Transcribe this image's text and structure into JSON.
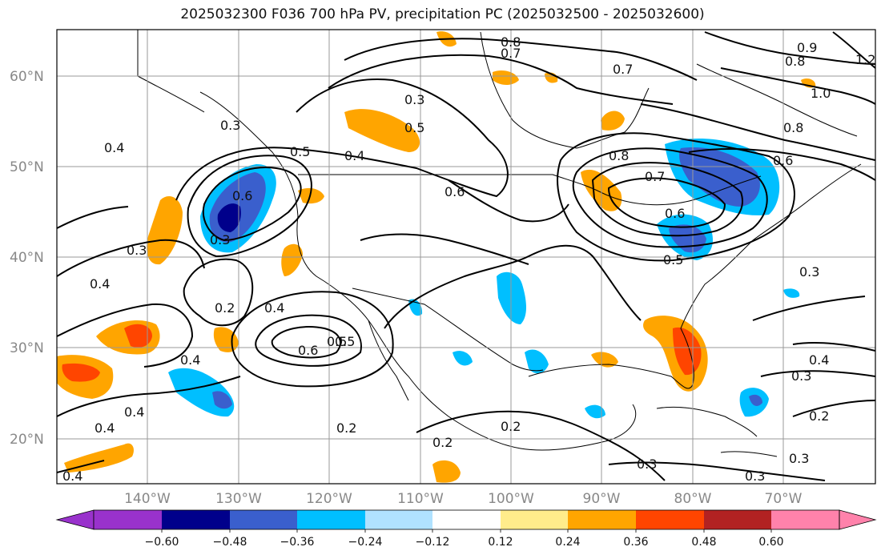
{
  "title": "2025032300 F036 700 hPa PV, precipitation PC (2025032500 - 2025032600)",
  "map": {
    "lat_labels": [
      "60°N",
      "50°N",
      "40°N",
      "30°N",
      "20°N"
    ],
    "lon_labels": [
      "140°W",
      "130°W",
      "120°W",
      "110°W",
      "100°W",
      "90°W",
      "80°W",
      "70°W"
    ],
    "contour_labels": [
      "0.8",
      "0.7",
      "0.9",
      "0.8",
      "1.2",
      "0.7",
      "1.0",
      "0.3",
      "0.5",
      "0.4",
      "0.5",
      "0.6",
      "0.3",
      "0.4",
      "0.6",
      "0.3",
      "0.3",
      "0.7",
      "0.8",
      "0.8",
      "0.6",
      "0.5",
      "0.6",
      "0.5",
      "0.4",
      "0.2",
      "0.4",
      "0.5",
      "0.6",
      "0.4",
      "0.4",
      "0.4",
      "0.4",
      "0.2",
      "0.2",
      "0.2",
      "0.3",
      "0.4",
      "0.3",
      "0.2",
      "0.3",
      "0.3",
      "0.3"
    ]
  },
  "colorbar": {
    "colors": [
      "#9932cc",
      "#00008b",
      "#3a5fcd",
      "#00bfff",
      "#b0e2ff",
      "#ffffff",
      "#ffec8b",
      "#ffa500",
      "#ff4500",
      "#b22222",
      "#ff82ab"
    ],
    "ticks": [
      "−0.60",
      "−0.48",
      "−0.36",
      "−0.24",
      "−0.12",
      "0.12",
      "0.24",
      "0.36",
      "0.48",
      "0.60"
    ]
  }
}
